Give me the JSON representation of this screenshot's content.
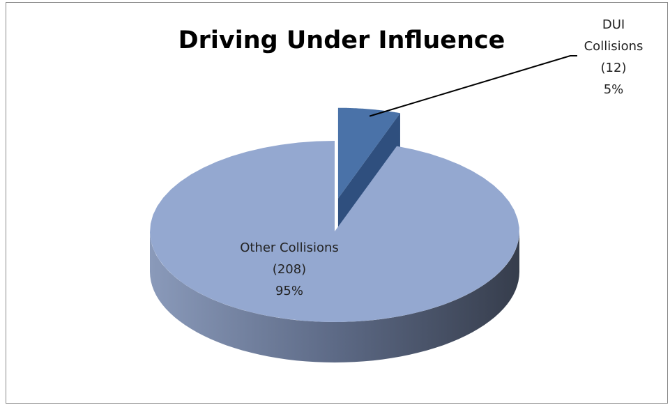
{
  "chart_data": {
    "type": "pie3d",
    "title": "Driving Under Influence",
    "categories": [
      "DUI Collisions",
      "Other Collisions"
    ],
    "values": [
      12,
      208
    ],
    "value_labels": [
      "(12)",
      "(208)"
    ],
    "percents": [
      5,
      95
    ],
    "percent_labels": [
      "5%",
      "95%"
    ],
    "colors": [
      "#4a72a8",
      "#94a8d0"
    ]
  }
}
